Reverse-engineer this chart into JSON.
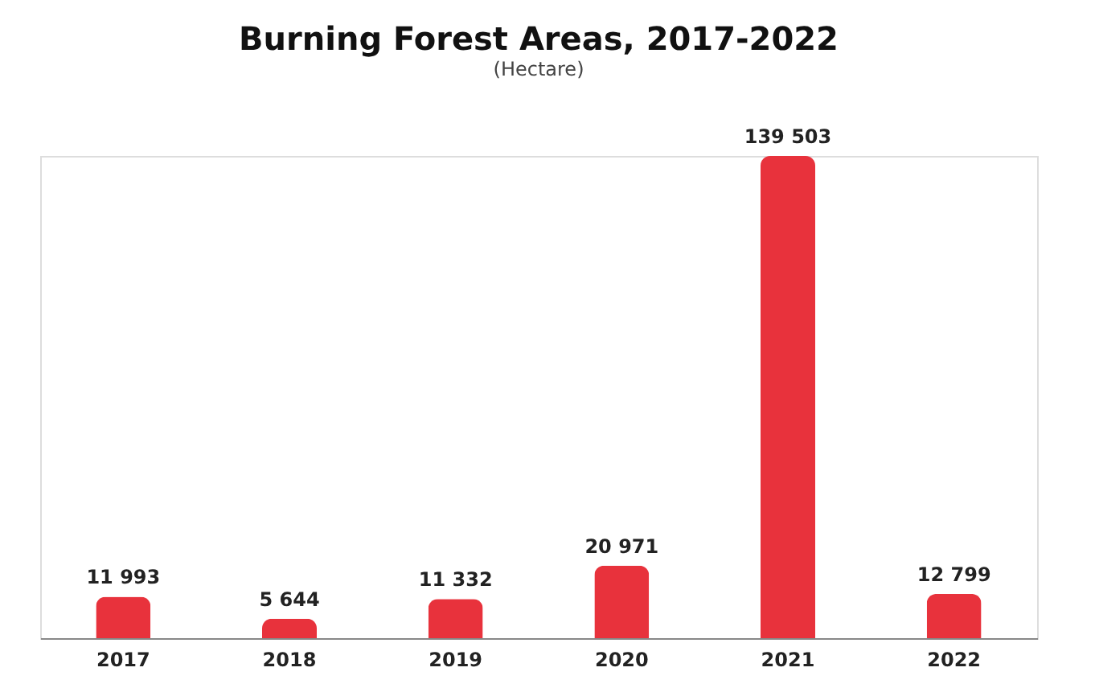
{
  "chart_data": {
    "type": "bar",
    "title": "Burning Forest Areas, 2017-2022",
    "subtitle": "(Hectare)",
    "categories": [
      "2017",
      "2018",
      "2019",
      "2020",
      "2021",
      "2022"
    ],
    "values": [
      11993,
      5644,
      11332,
      20971,
      139503,
      12799
    ],
    "value_labels": [
      "11 993",
      "5 644",
      "11 332",
      "20 971",
      "139 503",
      "12 799"
    ],
    "color": "#e8323c",
    "grid": false
  }
}
